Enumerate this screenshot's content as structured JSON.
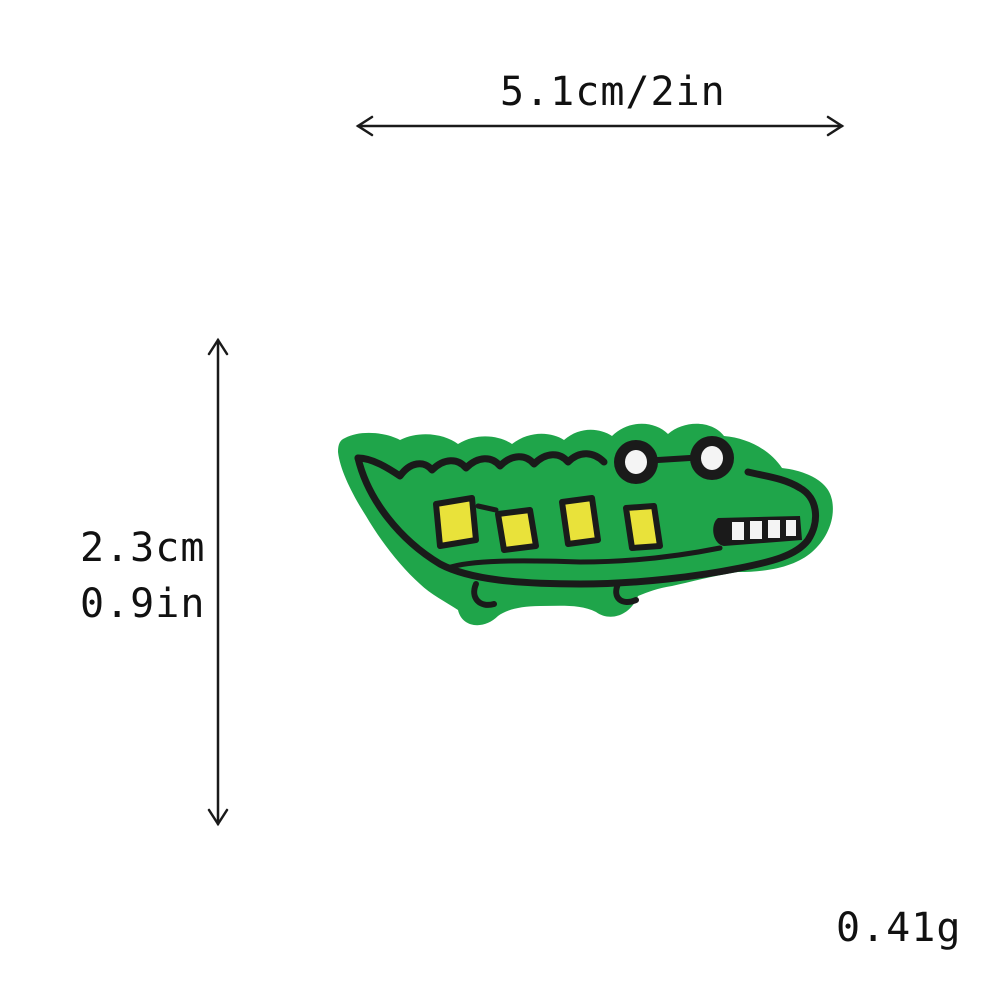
{
  "dimensions": {
    "width_label": "5.1cm/2in",
    "height_label_cm": "2.3cm",
    "height_label_in": "0.9in",
    "weight_label": "0.41g"
  },
  "colors": {
    "background": "#ffffff",
    "text": "#111111",
    "patch_green": "#1fa54a",
    "stitch_black": "#1a1a1a",
    "stitch_yellow": "#e9e23a",
    "stitch_white": "#f4f4f4"
  },
  "product": {
    "image": "embroidered-crocodile-patch"
  }
}
